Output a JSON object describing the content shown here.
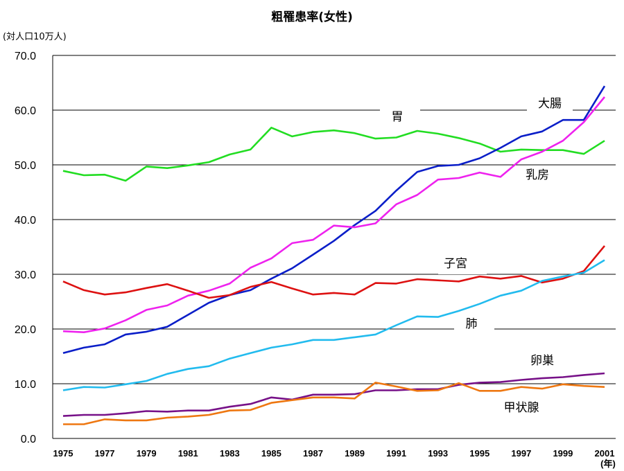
{
  "chart_data": {
    "type": "line",
    "title": "粗罹患率(女性)",
    "ylabel": "(対人口10万人)",
    "xlabel": "(年)",
    "ylim": [
      0,
      70
    ],
    "yticks": [
      "0.0",
      "10.0",
      "20.0",
      "30.0",
      "40.0",
      "50.0",
      "60.0",
      "70.0"
    ],
    "x": [
      1975,
      1976,
      1977,
      1978,
      1979,
      1980,
      1981,
      1982,
      1983,
      1984,
      1985,
      1986,
      1987,
      1988,
      1989,
      1990,
      1991,
      1992,
      1993,
      1994,
      1995,
      1996,
      1997,
      1998,
      1999,
      2000,
      2001
    ],
    "xticks": [
      "1975",
      "1977",
      "1979",
      "1981",
      "1983",
      "1985",
      "1987",
      "1989",
      "1991",
      "1993",
      "1995",
      "1997",
      "1999",
      "2001"
    ],
    "grid": "horizontal",
    "series": [
      {
        "name": "胃",
        "color": "#22dd22",
        "values": [
          48.9,
          48.1,
          48.2,
          47.1,
          49.7,
          49.4,
          49.9,
          50.5,
          51.9,
          52.8,
          56.8,
          55.2,
          56.0,
          56.3,
          55.8,
          54.8,
          55.0,
          56.2,
          55.7,
          54.9,
          53.9,
          52.4,
          52.8,
          52.7,
          52.7,
          52.0,
          54.4
        ]
      },
      {
        "name": "大腸",
        "color": "#0a1ec8",
        "values": [
          15.6,
          16.6,
          17.2,
          19.0,
          19.5,
          20.4,
          22.6,
          24.8,
          26.2,
          27.1,
          29.2,
          31.1,
          33.6,
          36.1,
          39.0,
          41.6,
          45.3,
          48.7,
          49.8,
          50.0,
          51.2,
          53.1,
          55.2,
          56.1,
          58.2,
          58.2,
          64.4
        ]
      },
      {
        "name": "乳房",
        "color": "#ee22ee",
        "values": [
          19.6,
          19.4,
          20.1,
          21.6,
          23.5,
          24.3,
          26.1,
          27.0,
          28.3,
          31.2,
          32.9,
          35.7,
          36.3,
          38.9,
          38.6,
          39.3,
          42.8,
          44.5,
          47.3,
          47.6,
          48.6,
          47.8,
          51.0,
          52.4,
          54.4,
          57.8,
          62.4
        ]
      },
      {
        "name": "子宮",
        "color": "#dd1111",
        "values": [
          28.7,
          27.1,
          26.3,
          26.7,
          27.5,
          28.2,
          27.0,
          25.7,
          26.2,
          27.7,
          28.6,
          27.4,
          26.3,
          26.6,
          26.3,
          28.4,
          28.3,
          29.1,
          28.9,
          28.7,
          29.6,
          29.2,
          29.7,
          28.5,
          29.2,
          30.6,
          35.2
        ]
      },
      {
        "name": "肺",
        "color": "#22bbee",
        "values": [
          8.8,
          9.4,
          9.3,
          9.9,
          10.5,
          11.8,
          12.7,
          13.2,
          14.6,
          15.6,
          16.6,
          17.2,
          18.0,
          18.0,
          18.5,
          19.0,
          20.7,
          22.3,
          22.2,
          23.3,
          24.6,
          26.1,
          27.0,
          28.8,
          29.6,
          30.3,
          32.6
        ]
      },
      {
        "name": "卵巣",
        "color": "#771188",
        "values": [
          4.1,
          4.3,
          4.3,
          4.6,
          5.0,
          4.9,
          5.1,
          5.1,
          5.8,
          6.3,
          7.5,
          7.1,
          8.0,
          8.0,
          8.1,
          8.8,
          8.8,
          9.0,
          9.0,
          9.8,
          10.2,
          10.3,
          10.7,
          11.0,
          11.2,
          11.6,
          11.9
        ]
      },
      {
        "name": "甲状腺",
        "color": "#ee7711",
        "values": [
          2.6,
          2.6,
          3.5,
          3.3,
          3.3,
          3.8,
          4.0,
          4.3,
          5.1,
          5.2,
          6.5,
          7.0,
          7.5,
          7.5,
          7.3,
          10.2,
          9.5,
          8.7,
          8.8,
          10.1,
          8.7,
          8.7,
          9.4,
          9.1,
          9.9,
          9.6,
          9.4
        ]
      }
    ]
  }
}
